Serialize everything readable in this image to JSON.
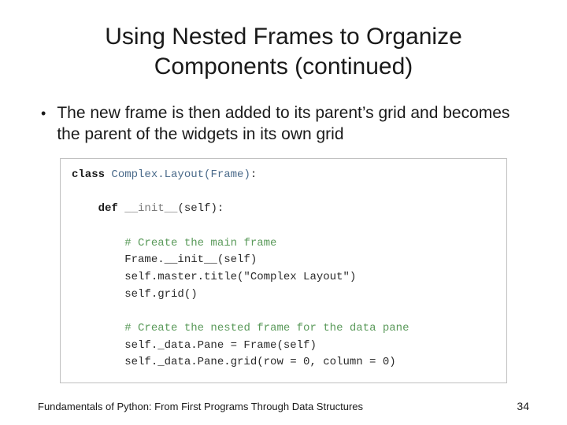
{
  "title": "Using Nested Frames to Organize Components (continued)",
  "bullet": "The new frame is then added to its parent’s grid and becomes the parent of the widgets in its own grid",
  "code": {
    "lines": [
      {
        "segments": [
          {
            "cls": "kw",
            "t": "class "
          },
          {
            "cls": "cls",
            "t": "Complex.Layout(Frame)"
          },
          {
            "cls": "",
            "t": ":"
          }
        ]
      },
      {
        "blank": true
      },
      {
        "segments": [
          {
            "cls": "",
            "t": "    "
          },
          {
            "cls": "kw",
            "t": "def "
          },
          {
            "cls": "fn",
            "t": "__init__"
          },
          {
            "cls": "",
            "t": "(self):"
          }
        ]
      },
      {
        "blank": true
      },
      {
        "segments": [
          {
            "cls": "",
            "t": "        "
          },
          {
            "cls": "comment",
            "t": "# Create the main frame"
          }
        ]
      },
      {
        "segments": [
          {
            "cls": "",
            "t": "        Frame.__init__(self)"
          }
        ]
      },
      {
        "segments": [
          {
            "cls": "",
            "t": "        self.master.title(\"Complex Layout\")"
          }
        ]
      },
      {
        "segments": [
          {
            "cls": "",
            "t": "        self.grid()"
          }
        ]
      },
      {
        "blank": true
      },
      {
        "segments": [
          {
            "cls": "",
            "t": "        "
          },
          {
            "cls": "comment",
            "t": "# Create the nested frame for the data pane"
          }
        ]
      },
      {
        "segments": [
          {
            "cls": "",
            "t": "        self._data.Pane = Frame(self)"
          }
        ]
      },
      {
        "segments": [
          {
            "cls": "",
            "t": "        self._data.Pane.grid(row = 0, column = 0)"
          }
        ]
      }
    ]
  },
  "footer": "Fundamentals of Python: From First Programs Through Data Structures",
  "page": "34",
  "colors": {
    "text": "#1a1a1a",
    "border": "#bfbfbf",
    "keyword": "#1a1a1a",
    "classname": "#4a6a8a",
    "fnname": "#7a7a7a",
    "comment": "#5a9a5a",
    "bg": "#ffffff"
  },
  "fonts": {
    "body": "Arial",
    "code": "Courier New",
    "title_size_pt": 30,
    "bullet_size_pt": 21,
    "code_size_pt": 14,
    "footer_size_pt": 13
  }
}
